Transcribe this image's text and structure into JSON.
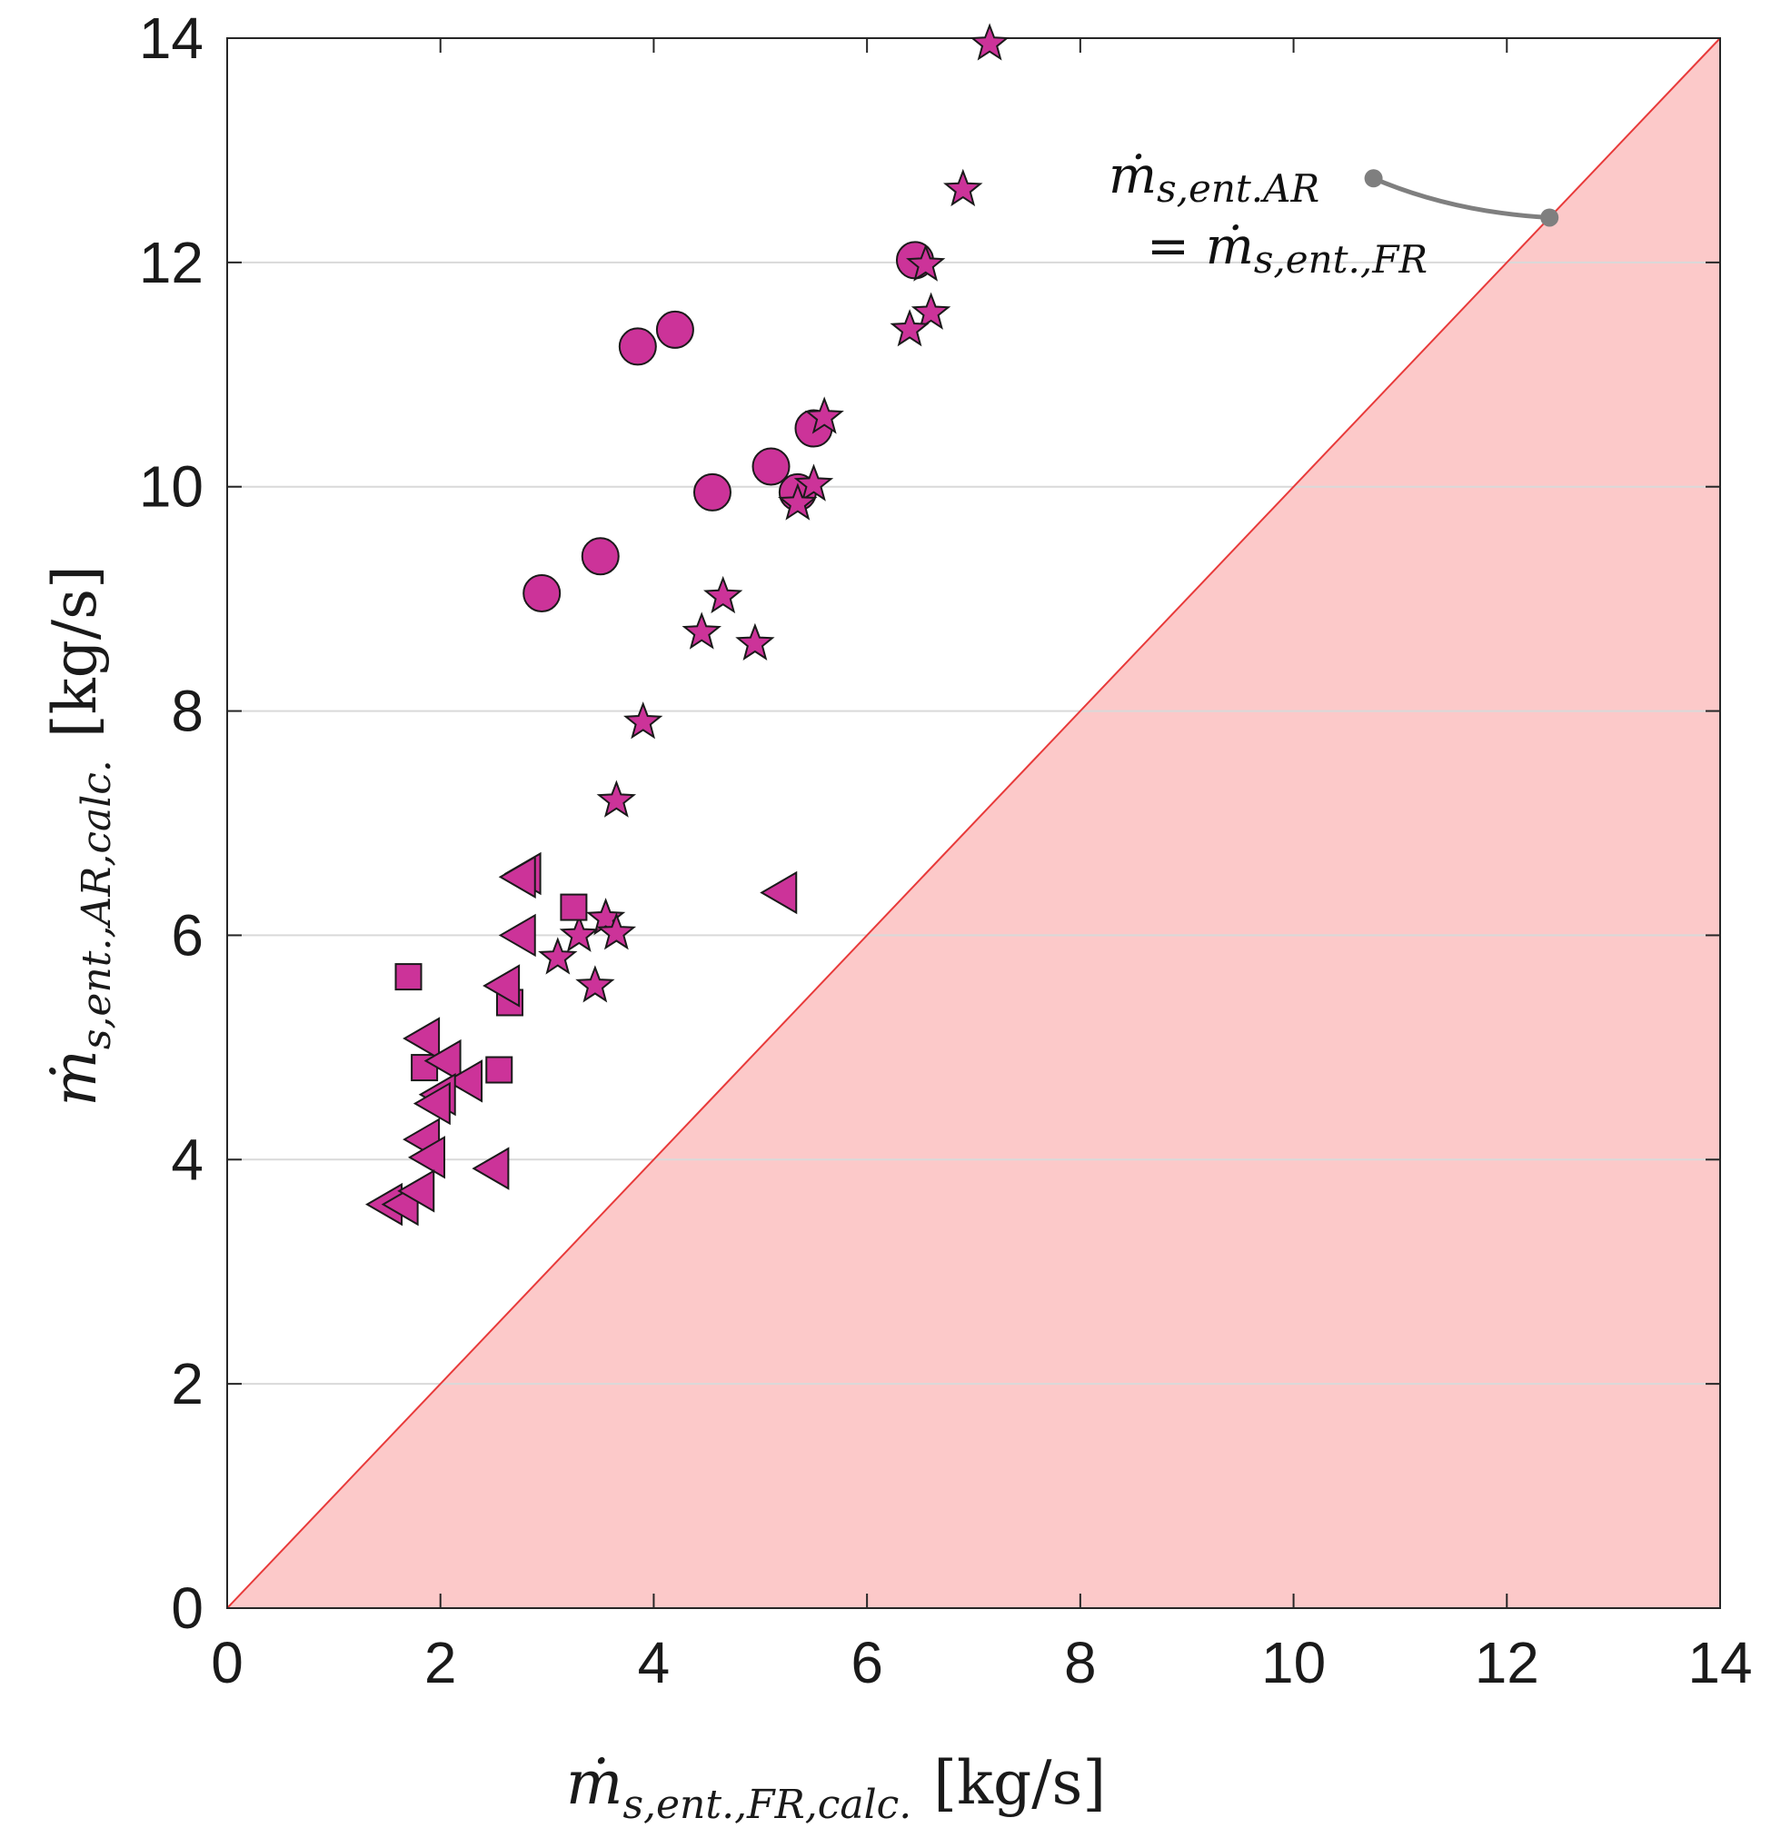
{
  "chart_data": {
    "type": "scatter",
    "xlabel": {
      "var": "ṁ",
      "sub": "s,ent.,FR,calc.",
      "unit": "[kg/s]"
    },
    "ylabel": {
      "var": "ṁ",
      "sub": "s,ent.,AR,calc.",
      "unit": "[kg/s]"
    },
    "xlim": [
      0,
      14
    ],
    "ylim": [
      0,
      14
    ],
    "xticks": [
      "0",
      "2",
      "4",
      "6",
      "8",
      "10",
      "12",
      "14"
    ],
    "yticks": [
      "0",
      "2",
      "4",
      "6",
      "8",
      "10",
      "12",
      "14"
    ],
    "grid": "horizontal",
    "colors": {
      "marker": "#cc3399",
      "marker_edge": "#1a1a1a",
      "region": "#fcc9c9",
      "diagonal": "#e83a3a",
      "annotation_line": "#7f7f7f"
    },
    "annotation": {
      "line1": {
        "var": "ṁ",
        "sub": "s,ent.AR"
      },
      "line2": {
        "prefix": "= ",
        "var": "ṁ",
        "sub": "s,ent.,FR"
      },
      "pointer_from": [
        10.75,
        12.75
      ],
      "pointer_to": [
        12.4,
        12.4
      ]
    },
    "shaded_region": "below y = x",
    "reference_line": "y = x",
    "series": [
      {
        "name": "circles",
        "marker": "circle",
        "x": [
          2.95,
          3.5,
          3.85,
          4.2,
          4.55,
          5.1,
          5.35,
          5.5,
          6.45
        ],
        "y": [
          9.05,
          9.38,
          11.25,
          11.4,
          9.95,
          10.18,
          9.95,
          10.52,
          12.02
        ]
      },
      {
        "name": "stars",
        "marker": "star",
        "x": [
          7.15,
          6.9,
          6.55,
          6.6,
          6.4,
          5.6,
          5.5,
          5.35,
          4.65,
          4.45,
          4.95,
          3.9,
          3.65,
          3.55,
          3.3,
          3.65,
          3.1,
          3.45
        ],
        "y": [
          13.95,
          12.65,
          11.98,
          11.55,
          11.4,
          10.62,
          10.02,
          9.85,
          9.02,
          8.7,
          8.6,
          7.9,
          7.2,
          6.15,
          6.0,
          6.02,
          5.8,
          5.55
        ]
      },
      {
        "name": "squares",
        "marker": "square",
        "x": [
          3.25,
          1.7,
          2.65,
          1.85,
          2.55
        ],
        "y": [
          6.25,
          5.63,
          5.4,
          4.82,
          4.8
        ]
      },
      {
        "name": "triangles",
        "marker": "triangle-left",
        "x": [
          2.8,
          2.75,
          5.2,
          2.75,
          2.6,
          1.85,
          2.05,
          2.25,
          2.0,
          1.95,
          1.85,
          1.9,
          2.5,
          1.5,
          1.65,
          1.8
        ],
        "y": [
          6.55,
          6.52,
          6.38,
          6.0,
          5.55,
          5.08,
          4.88,
          4.7,
          4.58,
          4.5,
          4.18,
          4.02,
          3.92,
          3.6,
          3.6,
          3.72
        ]
      }
    ]
  }
}
